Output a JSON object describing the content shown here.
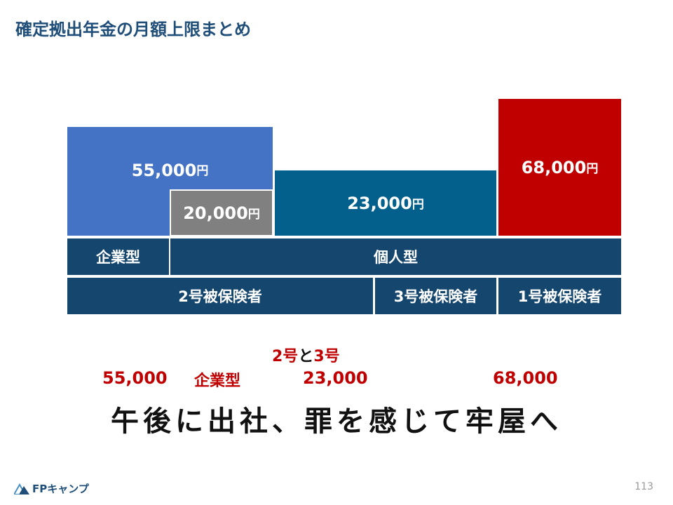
{
  "title": "確定拠出年金の月額上限まとめ",
  "unit": "円",
  "bars": {
    "corporate": "55,000",
    "corporate_with_db": "20,000",
    "individual_type2_3": "23,000",
    "individual_type1": "68,000"
  },
  "rows": {
    "corporate_label": "企業型",
    "individual_label": "個人型",
    "type2": "2号被保険者",
    "type3": "3号被保険者",
    "type1": "1号被保険者"
  },
  "notes": {
    "v1": "55,000",
    "corp": "企業型",
    "type23_a": "2号",
    "type23_to": "と",
    "type23_b": "3号",
    "v2": "23,000",
    "v3": "68,000"
  },
  "mnemonic": "午後に出社、罪を感じて牢屋へ",
  "footer": {
    "logo_text": "FPキャンプ",
    "page": "113"
  },
  "colors": {
    "blue": "#4472c4",
    "gray": "#808080",
    "teal": "#03608c",
    "red": "#c00000",
    "navy": "#15466d",
    "title": "#1f4e79"
  }
}
